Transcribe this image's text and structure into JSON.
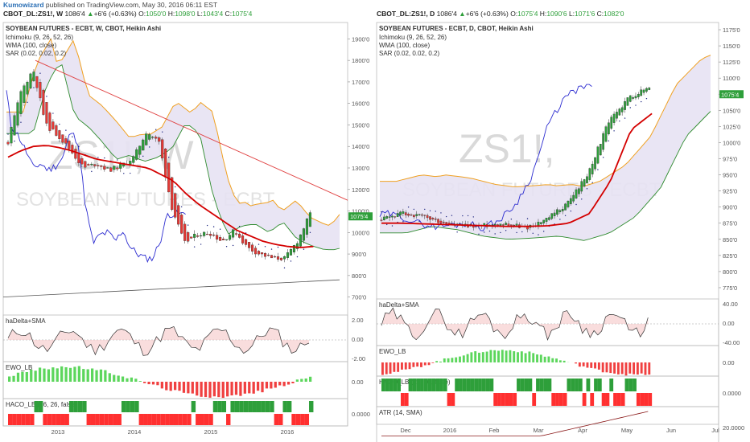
{
  "header": {
    "author": "Kumowizard",
    "published": " published on TradingView.com, May 30, 2016 06:11 EST"
  },
  "colors": {
    "up": "#2e9f3a",
    "down": "#e53935",
    "wma": "#d40000",
    "kijun": "#2c2cd0",
    "span_b": "#f0a020",
    "chikou": "#2e8b2e",
    "cloud": "#e7e2f3",
    "trend": "#e04040"
  },
  "left": {
    "ohlc": {
      "symbol": "CBOT_DL:ZS1!, W",
      "last": "1086'4",
      "chg": "+6'6 (+0.63%)",
      "o": "1050'0",
      "h": "1098'0",
      "l": "1043'4",
      "c": "1075'4"
    },
    "study_title": "SOYBEAN FUTURES - ECBT, W, CBOT, Heikin Ashi",
    "indicators": [
      "Ichimoku (9, 26, 52, 26)",
      "WMA (100, close)",
      "SAR (0.02, 0.02, 0.2)"
    ],
    "watermark_symbol": "ZS1!, W",
    "watermark_name": "SOYBEAN FUTURES - ECBT",
    "price_ticks": [
      "1900'0",
      "1800'0",
      "1700'0",
      "1600'0",
      "1500'0",
      "1400'0",
      "1300'0",
      "1200'0",
      "1100'0",
      "1000'0",
      "900'0",
      "800'0",
      "700'0"
    ],
    "last_price_label": "1075'4",
    "time_ticks": [
      "2013",
      "2014",
      "2015",
      "2016"
    ],
    "panels": [
      {
        "title": "haDelta+SMA",
        "ticks": [
          "2.00",
          "0.00",
          "-2.00"
        ]
      },
      {
        "title": "EWO_LB",
        "ticks": [
          "0.00"
        ]
      },
      {
        "title": "HACO_LB (26, 26, false)",
        "ticks": [
          "0.0000"
        ]
      }
    ]
  },
  "right": {
    "ohlc": {
      "symbol": "CBOT_DL:ZS1!, D",
      "last": "1086'4",
      "chg": "+6'6 (+0.63%)",
      "o": "1075'4",
      "h": "1090'6",
      "l": "1071'6",
      "c": "1082'0"
    },
    "study_title": "SOYBEAN FUTURES - ECBT, D, CBOT, Heikin Ashi",
    "indicators": [
      "Ichimoku (9, 26, 52, 26)",
      "WMA (100, close)",
      "SAR (0.02, 0.02, 0.2)"
    ],
    "watermark_symbol": "ZS1!,",
    "watermark_name": "SOYBEAN FUTURES - ECBT",
    "price_ticks": [
      "1175'0",
      "1150'0",
      "1125'0",
      "1100'0",
      "1075'0",
      "1050'0",
      "1025'0",
      "1000'0",
      "975'0",
      "950'0",
      "925'0",
      "900'0",
      "875'0",
      "850'0",
      "825'0",
      "800'0",
      "775'0"
    ],
    "last_price_label": "1075'4",
    "time_ticks": [
      "Dec",
      "2016",
      "Feb",
      "Mar",
      "Apr",
      "May",
      "Jun",
      "Jul"
    ],
    "panels": [
      {
        "title": "haDelta+SMA",
        "ticks": [
          "40.00",
          "0.00",
          "-40.00"
        ]
      },
      {
        "title": "EWO_LB",
        "ticks": [
          "0.00"
        ]
      },
      {
        "title": "HACO_LB (26, 26, false)",
        "ticks": [
          "0.0000"
        ]
      },
      {
        "title": "ATR (14, SMA)",
        "ticks": [
          "20.0000"
        ]
      }
    ]
  },
  "chart_data": [
    {
      "type": "line",
      "title": "SOYBEAN FUTURES - ECBT, W, CBOT, Heikin Ashi",
      "ylim": [
        650,
        1950
      ],
      "x": [
        "2012-06",
        "2012-08",
        "2012-10",
        "2012-12",
        "2013-02",
        "2013-04",
        "2013-06",
        "2013-08",
        "2013-10",
        "2013-12",
        "2014-02",
        "2014-04",
        "2014-06",
        "2014-08",
        "2014-10",
        "2014-12",
        "2015-02",
        "2015-04",
        "2015-06",
        "2015-08",
        "2015-10",
        "2015-12",
        "2016-02",
        "2016-04",
        "2016-05"
      ],
      "series": [
        {
          "name": "price",
          "values": [
            1420,
            1650,
            1760,
            1500,
            1450,
            1380,
            1300,
            1320,
            1290,
            1310,
            1350,
            1470,
            1420,
            1120,
            950,
            990,
            1000,
            960,
            1010,
            930,
            900,
            880,
            880,
            960,
            1086
          ]
        },
        {
          "name": "WMA",
          "values": [
            1350,
            1380,
            1400,
            1405,
            1395,
            1380,
            1360,
            1340,
            1330,
            1320,
            1310,
            1300,
            1270,
            1240,
            1180,
            1130,
            1090,
            1050,
            1010,
            985,
            960,
            945,
            935,
            930,
            935
          ]
        }
      ]
    },
    {
      "type": "line",
      "title": "SOYBEAN FUTURES - ECBT, D, CBOT, Heikin Ashi",
      "ylim": [
        760,
        1180
      ],
      "x": [
        "2015-11-15",
        "2015-12-01",
        "2015-12-15",
        "2016-01-01",
        "2016-01-15",
        "2016-02-01",
        "2016-02-15",
        "2016-03-01",
        "2016-03-15",
        "2016-04-01",
        "2016-04-15",
        "2016-05-01",
        "2016-05-15",
        "2016-05-27"
      ],
      "series": [
        {
          "name": "price",
          "values": [
            880,
            890,
            885,
            875,
            870,
            872,
            875,
            868,
            880,
            905,
            950,
            1030,
            1070,
            1086
          ]
        },
        {
          "name": "WMA",
          "values": [
            875,
            875,
            874,
            873,
            872,
            871,
            870,
            870,
            871,
            875,
            890,
            940,
            1020,
            1045
          ]
        }
      ]
    }
  ]
}
